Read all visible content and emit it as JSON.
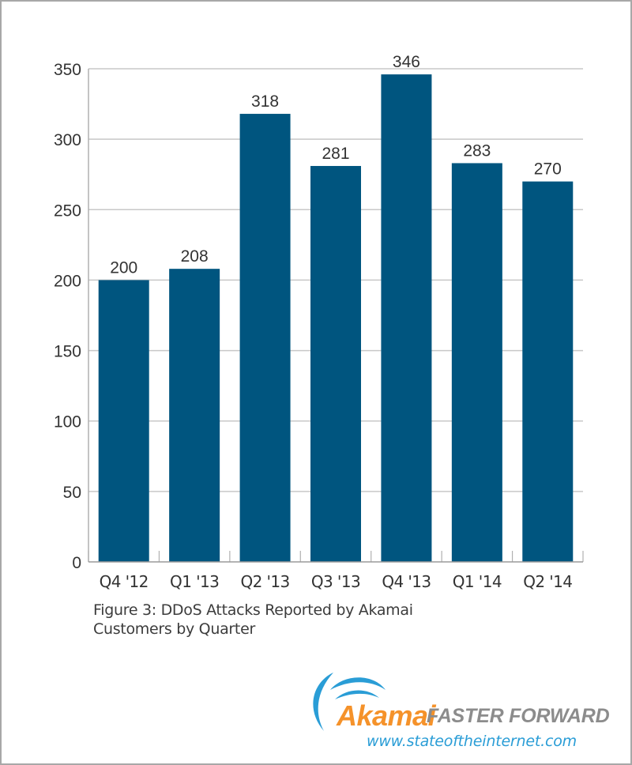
{
  "chart_data": {
    "type": "bar",
    "title": "",
    "caption_line1": "Figure 3: DDoS Attacks Reported by Akamai",
    "caption_line2": "Customers by Quarter",
    "xlabel": "",
    "ylabel": "",
    "categories": [
      "Q4 '12",
      "Q1 '13",
      "Q2 '13",
      "Q3 '13",
      "Q4 '13",
      "Q1 '14",
      "Q2 '14"
    ],
    "values": [
      200,
      208,
      318,
      281,
      346,
      283,
      270
    ],
    "data_labels": [
      "200",
      "208",
      "318",
      "281",
      "346",
      "283",
      "270"
    ],
    "ylim": [
      0,
      350
    ],
    "yticks": [
      0,
      50,
      100,
      150,
      200,
      250,
      300,
      350
    ],
    "ytick_labels": [
      "0",
      "50",
      "100",
      "150",
      "200",
      "250",
      "300",
      "350"
    ],
    "grid": true,
    "legend": "none",
    "bar_color": "#00557f",
    "grid_color": "#c8c8c8"
  },
  "branding": {
    "brand_name": "Akamai",
    "tagline": "FASTER FORWARD",
    "website": "www.stateoftheinternet.com",
    "brand_color": "#f5922a",
    "accent_color": "#2a9dd6",
    "tagline_color": "#8c8c8c"
  }
}
